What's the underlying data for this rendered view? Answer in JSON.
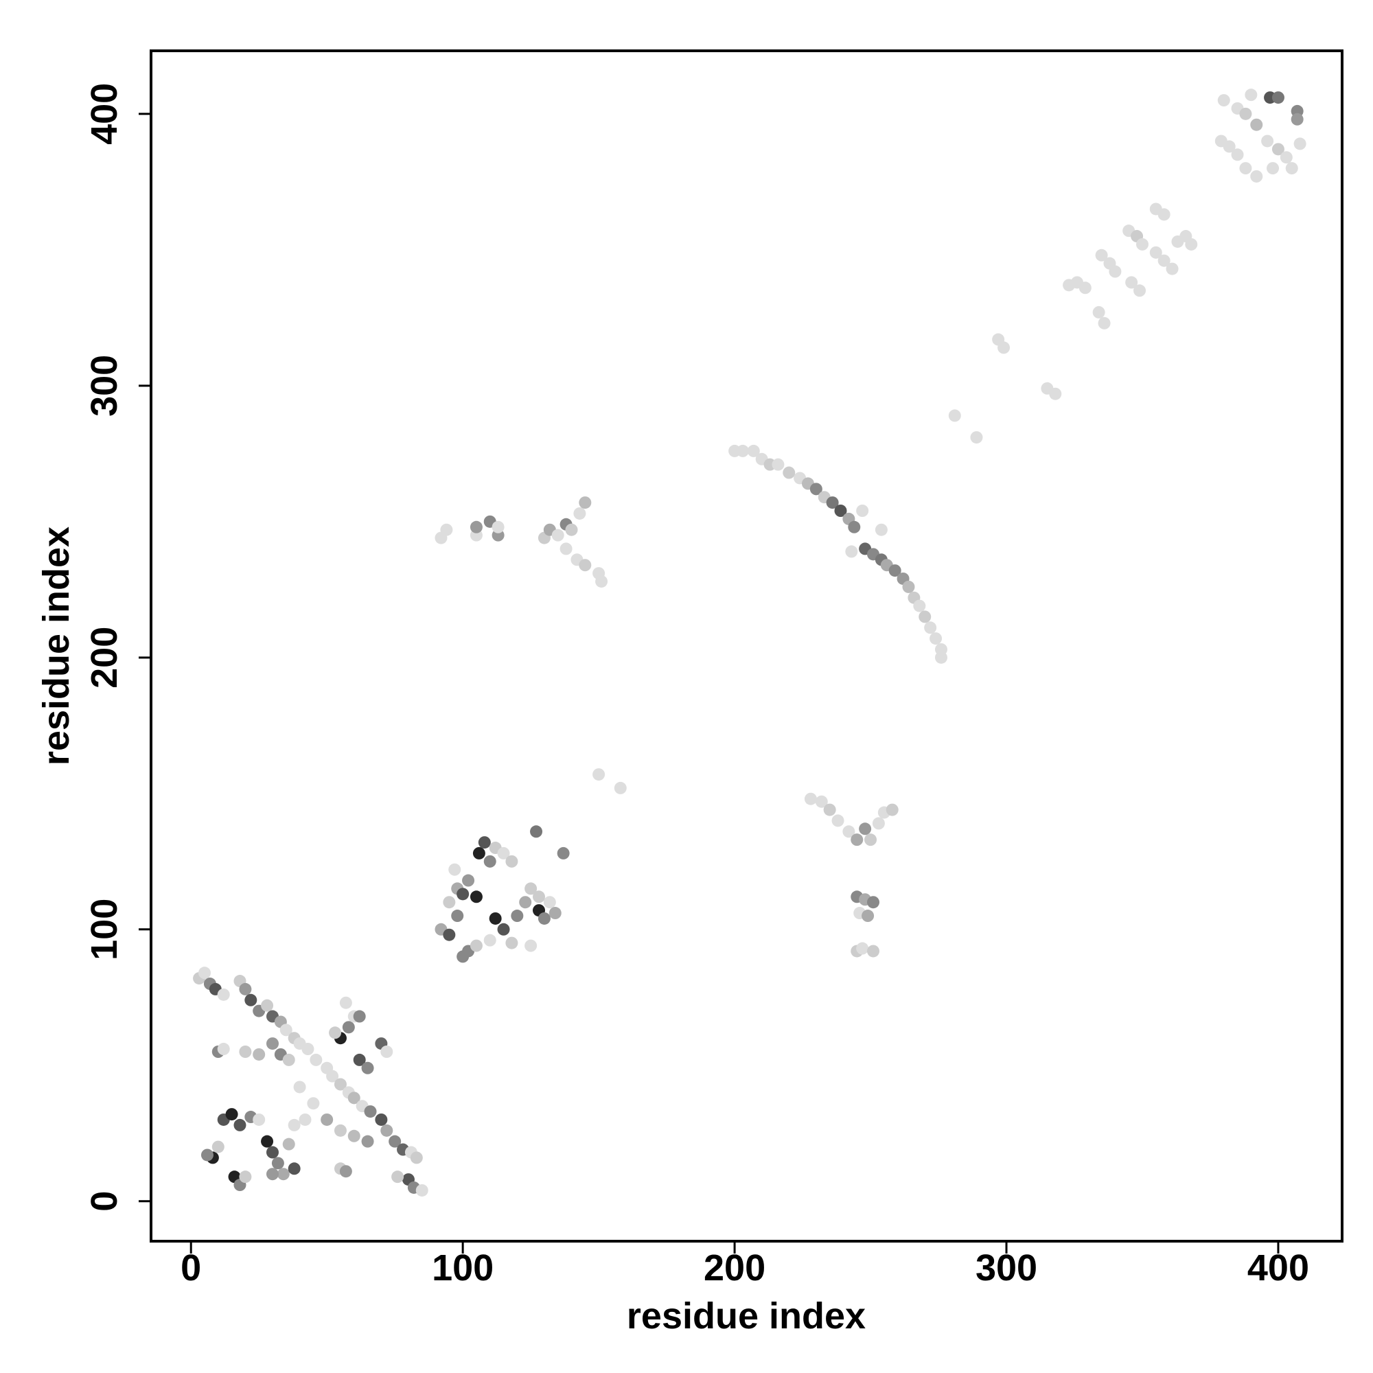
{
  "chart_data": {
    "type": "scatter",
    "x_label": "residue index",
    "y_label": "residue index",
    "xlim": [
      -14.7,
      423.5
    ],
    "ylim": [
      -14.7,
      423.2
    ],
    "xticks": [
      0,
      100,
      200,
      300,
      400
    ],
    "yticks": [
      0,
      100,
      200,
      300,
      400
    ],
    "x": [
      3,
      5,
      7,
      9,
      12,
      18,
      20,
      22,
      25,
      28,
      30,
      33,
      35,
      38,
      40,
      43,
      46,
      50,
      52,
      55,
      58,
      60,
      63,
      66,
      70,
      72,
      75,
      78,
      81,
      83,
      80,
      82,
      85,
      76,
      10,
      12,
      20,
      25,
      30,
      33,
      36,
      55,
      58,
      53,
      60,
      62,
      65,
      70,
      72,
      57,
      62,
      50,
      55,
      60,
      65,
      55,
      57,
      8,
      6,
      10,
      12,
      15,
      18,
      22,
      25,
      28,
      30,
      32,
      34,
      30,
      16,
      18,
      20,
      38,
      36,
      45,
      40,
      42,
      38,
      92,
      95,
      98,
      95,
      98,
      100,
      105,
      102,
      97,
      106,
      108,
      110,
      112,
      115,
      118,
      102,
      105,
      110,
      112,
      115,
      118,
      120,
      123,
      125,
      128,
      130,
      132,
      134,
      128,
      127,
      137,
      125,
      100,
      150,
      158,
      92,
      94,
      105,
      105,
      110,
      113,
      113,
      130,
      132,
      135,
      138,
      140,
      143,
      145,
      138,
      142,
      145,
      150,
      151,
      228,
      232,
      235,
      238,
      242,
      245,
      248,
      250,
      253,
      255,
      258,
      245,
      248,
      251,
      246,
      249,
      245,
      247,
      251,
      200,
      203,
      207,
      210,
      213,
      216,
      220,
      224,
      227,
      230,
      233,
      236,
      239,
      242,
      244,
      247,
      254,
      248,
      251,
      254,
      256,
      259,
      262,
      264,
      266,
      268,
      270,
      272,
      274,
      276,
      276,
      243,
      281,
      289,
      297,
      299,
      315,
      318,
      323,
      326,
      329,
      334,
      336,
      335,
      338,
      340,
      345,
      348,
      350,
      346,
      349,
      355,
      358,
      355,
      358,
      361,
      363,
      366,
      368,
      379,
      382,
      385,
      380,
      385,
      388,
      392,
      390,
      388,
      392,
      396,
      400,
      403,
      397,
      400,
      407,
      407,
      408,
      405,
      398
    ],
    "values": [
      82,
      84,
      80,
      78,
      76,
      81,
      78,
      74,
      70,
      72,
      68,
      66,
      63,
      60,
      58,
      56,
      52,
      49,
      46,
      43,
      40,
      38,
      35,
      33,
      30,
      26,
      22,
      19,
      18,
      16,
      8,
      5,
      4,
      9,
      55,
      56,
      55,
      54,
      58,
      54,
      52,
      60,
      64,
      62,
      68,
      52,
      49,
      58,
      55,
      73,
      68,
      30,
      26,
      24,
      22,
      12,
      11,
      16,
      17,
      20,
      30,
      32,
      28,
      31,
      30,
      22,
      18,
      14,
      10,
      10,
      9,
      6,
      9,
      12,
      21,
      36,
      42,
      30,
      28,
      100,
      98,
      105,
      110,
      115,
      113,
      112,
      118,
      122,
      128,
      132,
      125,
      130,
      128,
      125,
      92,
      94,
      96,
      104,
      100,
      95,
      105,
      110,
      115,
      107,
      104,
      110,
      106,
      112,
      136,
      128,
      94,
      90,
      157,
      152,
      244,
      247,
      245,
      248,
      250,
      245,
      248,
      244,
      247,
      245,
      249,
      247,
      253,
      257,
      240,
      236,
      234,
      231,
      228,
      148,
      147,
      144,
      140,
      136,
      133,
      137,
      133,
      139,
      143,
      144,
      112,
      111,
      110,
      106,
      105,
      92,
      93,
      92,
      276,
      276,
      276,
      273,
      271,
      271,
      268,
      266,
      264,
      262,
      259,
      257,
      254,
      251,
      248,
      254,
      247,
      240,
      238,
      236,
      234,
      232,
      229,
      226,
      222,
      219,
      215,
      211,
      207,
      203,
      200,
      239,
      289,
      281,
      317,
      314,
      299,
      297,
      337,
      338,
      336,
      327,
      323,
      348,
      345,
      342,
      357,
      355,
      352,
      338,
      335,
      365,
      363,
      349,
      346,
      343,
      353,
      355,
      352,
      390,
      388,
      385,
      405,
      402,
      400,
      396,
      407,
      380,
      377,
      390,
      387,
      384,
      406,
      406,
      401,
      398,
      389,
      380,
      380
    ],
    "colors": [
      "#ccc",
      "#ddd",
      "#888",
      "#555",
      "#ddd",
      "#ccc",
      "#999",
      "#555",
      "#888",
      "#ccc",
      "#666",
      "#aaa",
      "#ddd",
      "#ccc",
      "#ddd",
      "#ddd",
      "#ddd",
      "#ddd",
      "#ddd",
      "#ccc",
      "#ddd",
      "#bbb",
      "#ddd",
      "#888",
      "#555",
      "#aaa",
      "#888",
      "#666",
      "#ddd",
      "#ccc",
      "#555",
      "#888",
      "#ddd",
      "#ccc",
      "#888",
      "#ddd",
      "#ccc",
      "#bbb",
      "#999",
      "#888",
      "#ccc",
      "#222",
      "#888",
      "#ccc",
      "#ddd",
      "#555",
      "#888",
      "#666",
      "#ddd",
      "#ddd",
      "#888",
      "#aaa",
      "#ccc",
      "#bbb",
      "#999",
      "#ccc",
      "#999",
      "#222",
      "#888",
      "#ccc",
      "#555",
      "#222",
      "#555",
      "#888",
      "#ddd",
      "#222",
      "#555",
      "#888",
      "#aaa",
      "#999",
      "#222",
      "#888",
      "#ccc",
      "#555",
      "#bbb",
      "#ddd",
      "#ddd",
      "#ddd",
      "#ddd",
      "#aaa",
      "#555",
      "#888",
      "#ccc",
      "#aaa",
      "#555",
      "#222",
      "#999",
      "#ddd",
      "#222",
      "#555",
      "#888",
      "#ccc",
      "#ddd",
      "#ccc",
      "#888",
      "#ccc",
      "#ddd",
      "#222",
      "#555",
      "#ccc",
      "#888",
      "#aaa",
      "#ccc",
      "#222",
      "#888",
      "#ddd",
      "#aaa",
      "#ccc",
      "#777",
      "#888",
      "#ddd",
      "#888",
      "#ddd",
      "#ddd",
      "#ddd",
      "#ddd",
      "#ddd",
      "#999",
      "#888",
      "#999",
      "#ddd",
      "#ccc",
      "#aaa",
      "#ddd",
      "#888",
      "#ccc",
      "#ddd",
      "#bbb",
      "#ddd",
      "#ddd",
      "#ccc",
      "#ddd",
      "#ddd",
      "#ddd",
      "#ddd",
      "#ccc",
      "#ddd",
      "#ddd",
      "#aaa",
      "#999",
      "#ccc",
      "#ddd",
      "#ddd",
      "#ccc",
      "#888",
      "#aaa",
      "#888",
      "#ddd",
      "#aaa",
      "#ccc",
      "#ddd",
      "#ccc",
      "#ddd",
      "#ddd",
      "#ddd",
      "#ddd",
      "#ccc",
      "#ddd",
      "#ccc",
      "#ddd",
      "#bbb",
      "#888",
      "#ccc",
      "#777",
      "#555",
      "#aaa",
      "#888",
      "#ddd",
      "#ddd",
      "#666",
      "#888",
      "#777",
      "#aaa",
      "#888",
      "#999",
      "#bbb",
      "#ccc",
      "#ddd",
      "#ccc",
      "#ddd",
      "#ddd",
      "#ddd",
      "#ddd",
      "#ddd",
      "#ddd",
      "#ddd",
      "#ddd",
      "#ddd",
      "#ddd",
      "#ddd",
      "#ddd",
      "#ddd",
      "#ddd",
      "#ddd",
      "#ddd",
      "#ddd",
      "#ddd",
      "#ddd",
      "#ddd",
      "#ccc",
      "#ddd",
      "#ddd",
      "#ddd",
      "#ddd",
      "#ddd",
      "#ddd",
      "#ddd",
      "#ddd",
      "#ddd",
      "#ddd",
      "#ddd",
      "#ddd",
      "#ddd",
      "#ddd",
      "#ddd",
      "#ddd",
      "#ccc",
      "#bbb",
      "#ddd",
      "#ddd",
      "#ddd",
      "#ddd",
      "#ccc",
      "#ddd",
      "#555",
      "#777",
      "#888",
      "#999",
      "#ddd",
      "#ddd",
      "#ddd"
    ]
  }
}
